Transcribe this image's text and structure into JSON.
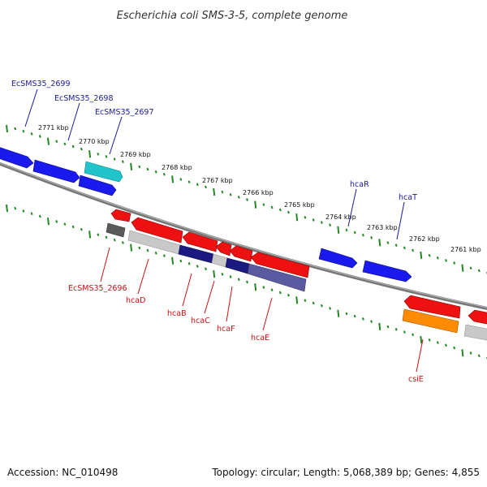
{
  "title": "Escherichia coli SMS-3-5, complete genome",
  "footer": {
    "accession": "Accession: NC_010498",
    "summary": "Topology: circular; Length: 5,068,389 bp; Genes: 4,855"
  },
  "scale_labels": [
    "2771 kbp",
    "2770 kbp",
    "2769 kbp",
    "2768 kbp",
    "2767 kbp",
    "2766 kbp",
    "2765 kbp",
    "2764 kbp",
    "2763 kbp",
    "2762 kbp",
    "2761 kbp"
  ],
  "forward_gene_labels": [
    "EcSMS35_2699",
    "EcSMS35_2698",
    "EcSMS35_2697",
    "hcaR",
    "hcaT"
  ],
  "reverse_gene_labels": [
    "EcSMS35_2696",
    "hcaD",
    "hcaB",
    "hcaC",
    "hcaF",
    "hcaE",
    "csiE"
  ],
  "colors": {
    "forward_gene": "#1a1aee",
    "forward_gene_alt": "#22c4cc",
    "reverse_gene": "#ee1111",
    "reverse_gene_alt": "#ff8c00",
    "feature_grey": "#c8c8c8",
    "feature_dark": "#5a5a5a",
    "feature_navy": "#1a1a80",
    "feature_slate": "#5a5aa0",
    "backbone": "#777777",
    "tick": "#228822",
    "forward_label": "#1a1a9a",
    "reverse_label": "#cc1111"
  }
}
